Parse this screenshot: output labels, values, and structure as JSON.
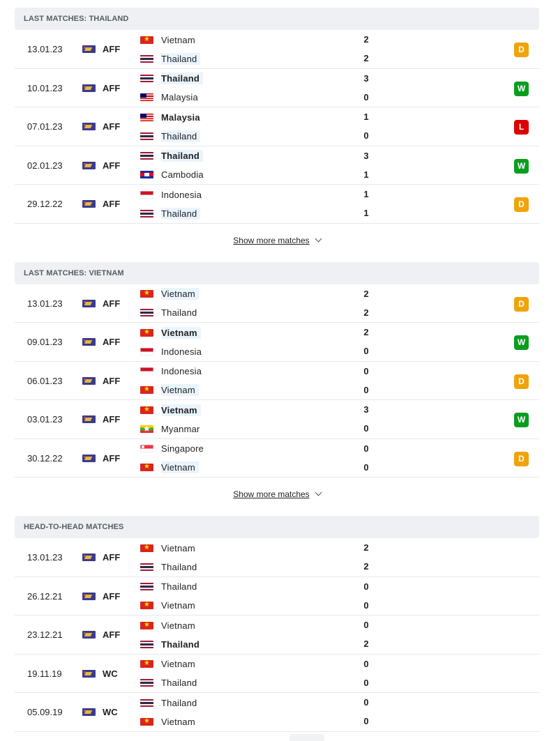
{
  "colors": {
    "draw": "#f0a30a",
    "win": "#0a9e1f",
    "loss": "#dc0000",
    "highlight": "#eaf4fd",
    "section_bg": "#eef0f3"
  },
  "icons": {
    "competition": "competition-logo-icon",
    "chevron": "chevron-down-icon"
  },
  "show_more_label": "Show more matches",
  "sections": [
    {
      "title": "LAST MATCHES: THAILAND",
      "show_more": true,
      "matches": [
        {
          "date": "13.01.23",
          "comp": "AFF",
          "home": {
            "name": "Vietnam",
            "flag": "vietnam",
            "bold": false,
            "hl": false
          },
          "away": {
            "name": "Thailand",
            "flag": "thailand",
            "bold": false,
            "hl": true
          },
          "home_score": "2",
          "away_score": "2",
          "result": "D"
        },
        {
          "date": "10.01.23",
          "comp": "AFF",
          "home": {
            "name": "Thailand",
            "flag": "thailand",
            "bold": true,
            "hl": true
          },
          "away": {
            "name": "Malaysia",
            "flag": "malaysia",
            "bold": false,
            "hl": false
          },
          "home_score": "3",
          "away_score": "0",
          "result": "W"
        },
        {
          "date": "07.01.23",
          "comp": "AFF",
          "home": {
            "name": "Malaysia",
            "flag": "malaysia",
            "bold": true,
            "hl": false
          },
          "away": {
            "name": "Thailand",
            "flag": "thailand",
            "bold": false,
            "hl": true
          },
          "home_score": "1",
          "away_score": "0",
          "result": "L"
        },
        {
          "date": "02.01.23",
          "comp": "AFF",
          "home": {
            "name": "Thailand",
            "flag": "thailand",
            "bold": true,
            "hl": true
          },
          "away": {
            "name": "Cambodia",
            "flag": "cambodia",
            "bold": false,
            "hl": false
          },
          "home_score": "3",
          "away_score": "1",
          "result": "W"
        },
        {
          "date": "29.12.22",
          "comp": "AFF",
          "home": {
            "name": "Indonesia",
            "flag": "indonesia",
            "bold": false,
            "hl": false
          },
          "away": {
            "name": "Thailand",
            "flag": "thailand",
            "bold": false,
            "hl": true
          },
          "home_score": "1",
          "away_score": "1",
          "result": "D"
        }
      ]
    },
    {
      "title": "LAST MATCHES: VIETNAM",
      "show_more": true,
      "matches": [
        {
          "date": "13.01.23",
          "comp": "AFF",
          "home": {
            "name": "Vietnam",
            "flag": "vietnam",
            "bold": false,
            "hl": true
          },
          "away": {
            "name": "Thailand",
            "flag": "thailand",
            "bold": false,
            "hl": false
          },
          "home_score": "2",
          "away_score": "2",
          "result": "D"
        },
        {
          "date": "09.01.23",
          "comp": "AFF",
          "home": {
            "name": "Vietnam",
            "flag": "vietnam",
            "bold": true,
            "hl": true
          },
          "away": {
            "name": "Indonesia",
            "flag": "indonesia",
            "bold": false,
            "hl": false
          },
          "home_score": "2",
          "away_score": "0",
          "result": "W"
        },
        {
          "date": "06.01.23",
          "comp": "AFF",
          "home": {
            "name": "Indonesia",
            "flag": "indonesia",
            "bold": false,
            "hl": false
          },
          "away": {
            "name": "Vietnam",
            "flag": "vietnam",
            "bold": false,
            "hl": true
          },
          "home_score": "0",
          "away_score": "0",
          "result": "D"
        },
        {
          "date": "03.01.23",
          "comp": "AFF",
          "home": {
            "name": "Vietnam",
            "flag": "vietnam",
            "bold": true,
            "hl": true
          },
          "away": {
            "name": "Myanmar",
            "flag": "myanmar",
            "bold": false,
            "hl": false
          },
          "home_score": "3",
          "away_score": "0",
          "result": "W"
        },
        {
          "date": "30.12.22",
          "comp": "AFF",
          "home": {
            "name": "Singapore",
            "flag": "singapore",
            "bold": false,
            "hl": false
          },
          "away": {
            "name": "Vietnam",
            "flag": "vietnam",
            "bold": false,
            "hl": true
          },
          "home_score": "0",
          "away_score": "0",
          "result": "D"
        }
      ]
    },
    {
      "title": "HEAD-TO-HEAD MATCHES",
      "show_more": false,
      "matches": [
        {
          "date": "13.01.23",
          "comp": "AFF",
          "home": {
            "name": "Vietnam",
            "flag": "vietnam",
            "bold": false,
            "hl": false
          },
          "away": {
            "name": "Thailand",
            "flag": "thailand",
            "bold": false,
            "hl": false
          },
          "home_score": "2",
          "away_score": "2",
          "result": ""
        },
        {
          "date": "26.12.21",
          "comp": "AFF",
          "home": {
            "name": "Thailand",
            "flag": "thailand",
            "bold": false,
            "hl": false
          },
          "away": {
            "name": "Vietnam",
            "flag": "vietnam",
            "bold": false,
            "hl": false
          },
          "home_score": "0",
          "away_score": "0",
          "result": ""
        },
        {
          "date": "23.12.21",
          "comp": "AFF",
          "home": {
            "name": "Vietnam",
            "flag": "vietnam",
            "bold": false,
            "hl": false
          },
          "away": {
            "name": "Thailand",
            "flag": "thailand",
            "bold": true,
            "hl": false
          },
          "home_score": "0",
          "away_score": "2",
          "result": ""
        },
        {
          "date": "19.11.19",
          "comp": "WC",
          "home": {
            "name": "Vietnam",
            "flag": "vietnam",
            "bold": false,
            "hl": false
          },
          "away": {
            "name": "Thailand",
            "flag": "thailand",
            "bold": false,
            "hl": false
          },
          "home_score": "0",
          "away_score": "0",
          "result": ""
        },
        {
          "date": "05.09.19",
          "comp": "WC",
          "home": {
            "name": "Thailand",
            "flag": "thailand",
            "bold": false,
            "hl": false
          },
          "away": {
            "name": "Vietnam",
            "flag": "vietnam",
            "bold": false,
            "hl": false
          },
          "home_score": "0",
          "away_score": "0",
          "result": ""
        }
      ]
    }
  ]
}
